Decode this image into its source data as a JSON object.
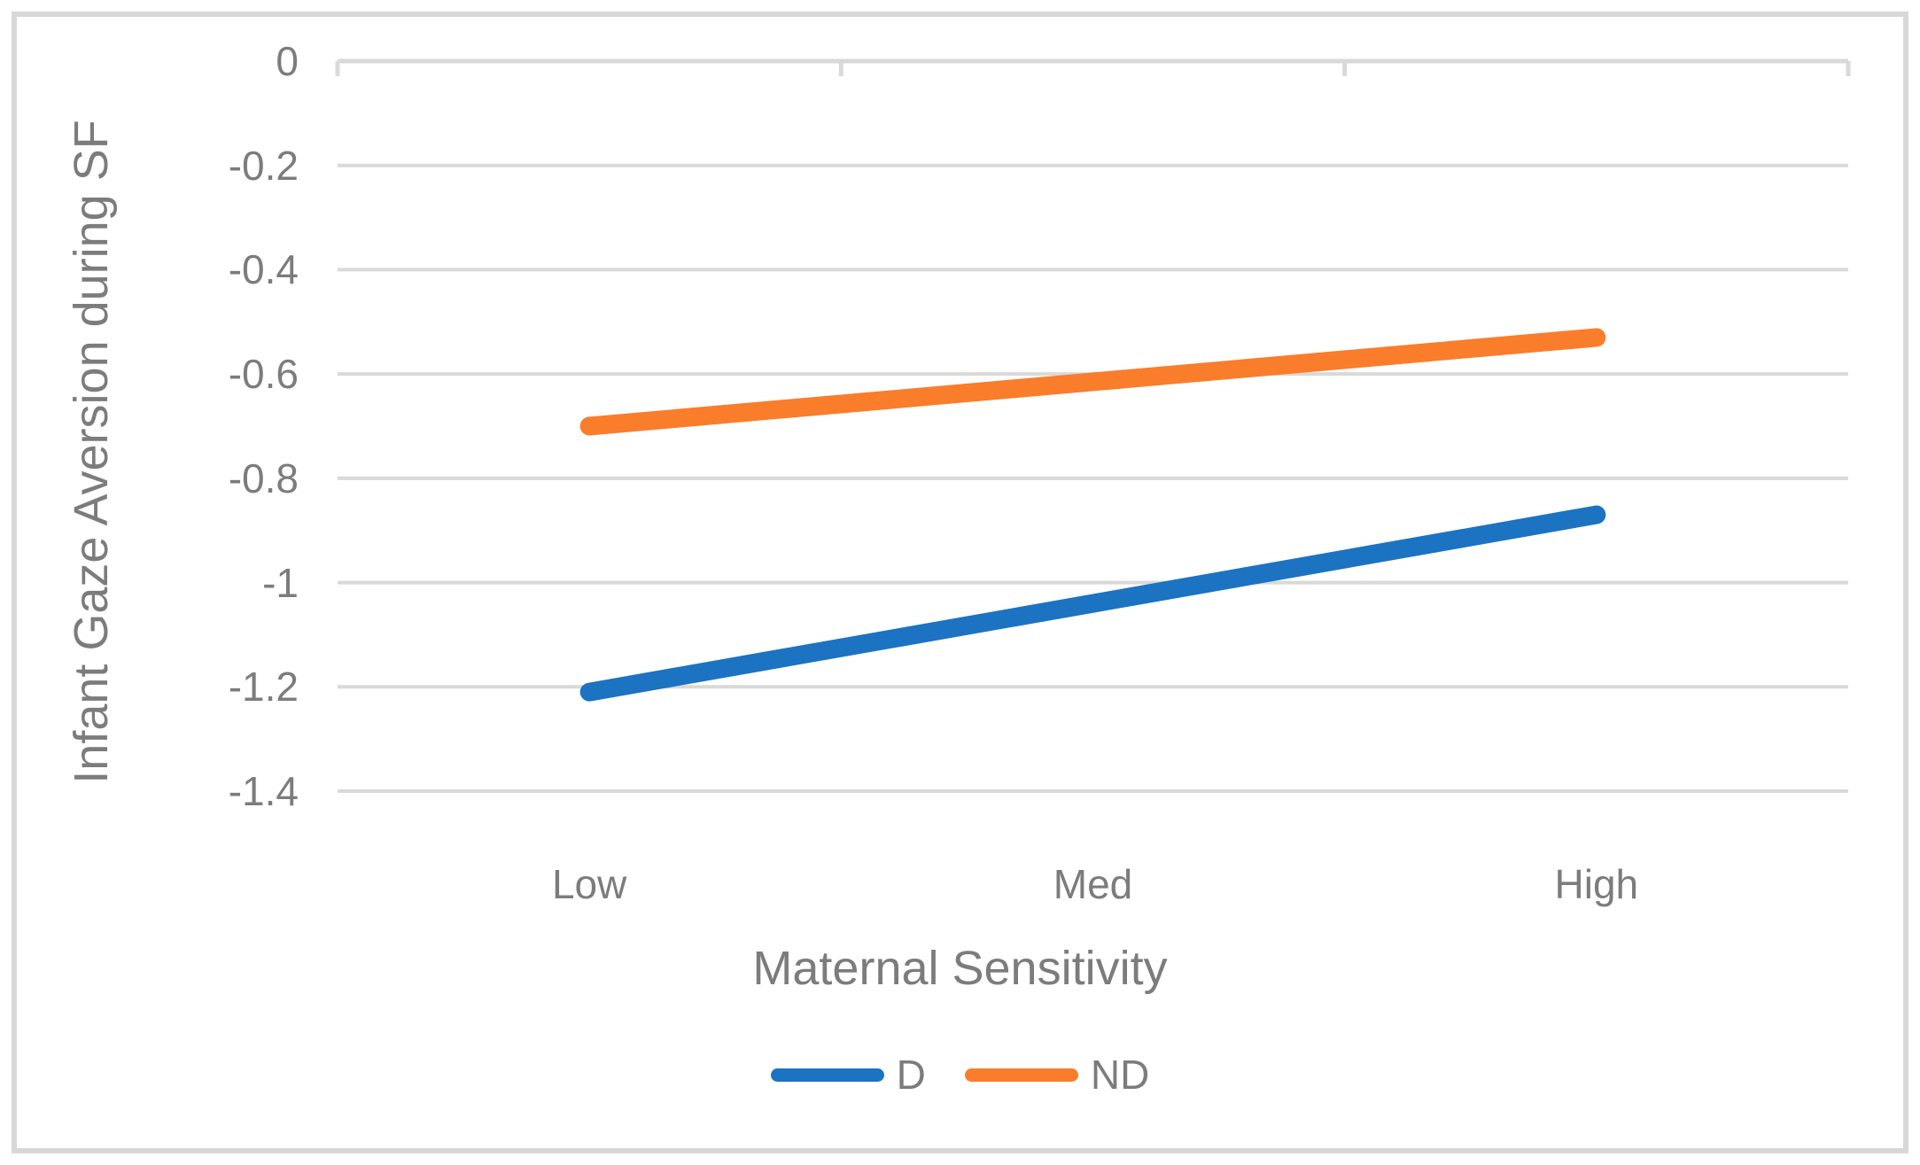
{
  "figure": {
    "title": "",
    "y_axis_title": "Infant Gaze Aversion during SF",
    "x_axis_title": "Maternal Sensitivity"
  },
  "chart_data": {
    "type": "line",
    "categories": [
      "Low",
      "Med",
      "High"
    ],
    "series": [
      {
        "name": "D",
        "color": "#1b73c2",
        "values": [
          -1.21,
          -1.04,
          -0.87
        ]
      },
      {
        "name": "ND",
        "color": "#f97d2b",
        "values": [
          -0.7,
          -0.615,
          -0.53
        ]
      }
    ],
    "title": "",
    "xlabel": "Maternal Sensitivity",
    "ylabel": "Infant Gaze Aversion during SF",
    "ylim": [
      -1.4,
      0
    ],
    "y_ticks": [
      "0",
      "-0.2",
      "-0.4",
      "-0.6",
      "-0.8",
      "-1",
      "-1.2",
      "-1.4"
    ],
    "y_tick_values": [
      0,
      -0.2,
      -0.4,
      -0.6,
      -0.8,
      -1,
      -1.2,
      -1.4
    ],
    "grid": "horizontal",
    "legend_position": "bottom",
    "line_style": "straight, round caps, no markers"
  },
  "colors": {
    "background": "#ffffff",
    "figure_border": "#d7d7d7",
    "gridline": "#d9d9d9",
    "axis_text": "#7c7c7c",
    "series_d": "#1b73c2",
    "series_nd": "#f97d2b"
  }
}
